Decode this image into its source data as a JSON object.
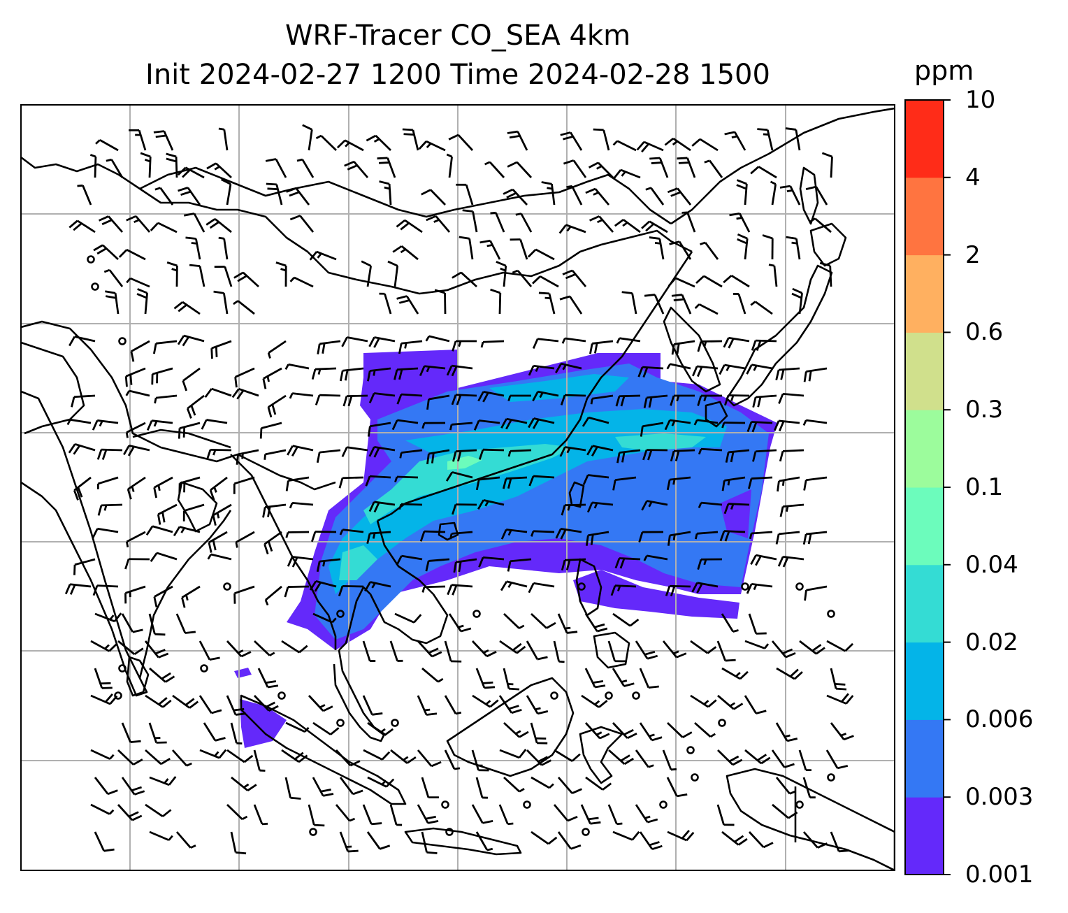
{
  "title": {
    "line1": "WRF-Tracer CO_SEA 4km",
    "line2": "Init 2024-02-27 1200 Time 2024-02-28 1500"
  },
  "colorbar": {
    "unit": "ppm",
    "levels": [
      "0.001",
      "0.003",
      "0.006",
      "0.02",
      "0.04",
      "0.1",
      "0.3",
      "0.6",
      "2",
      "4",
      "10"
    ],
    "colors": [
      "#6429fa",
      "#3478f4",
      "#04b4e8",
      "#34dcd4",
      "#6cfcbc",
      "#9cfc9c",
      "#d0e08c",
      "#ffb060",
      "#ff7440",
      "#ff2c18"
    ]
  },
  "map": {
    "plume_colors": {
      "faint": "#6429fa",
      "low": "#3478f4",
      "mid": "#04b4e8",
      "high": "#34dcd4",
      "peak": "#6cfcbc"
    },
    "coastline_color": "#000000",
    "grid_color": "#b0b0b0",
    "wind_barb_color": "#000000"
  }
}
